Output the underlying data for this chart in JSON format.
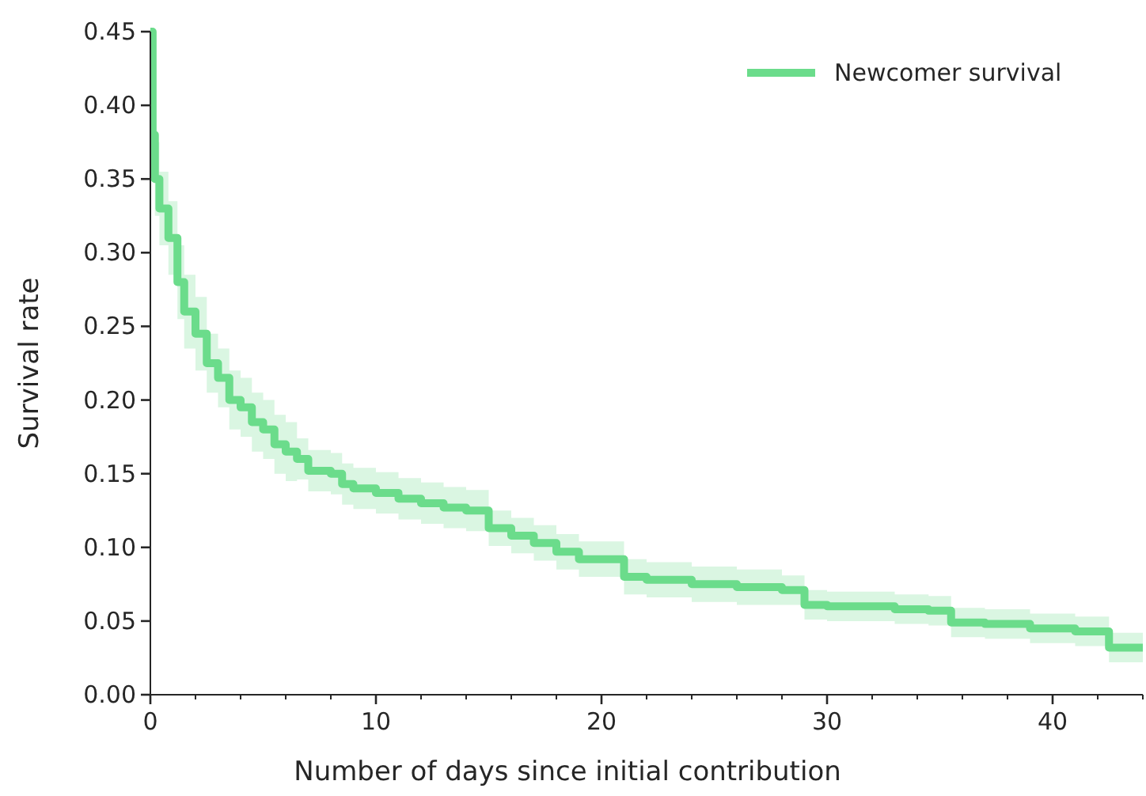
{
  "chart_data": {
    "type": "step",
    "xlabel": "Number of days since initial contribution",
    "ylabel": "Survival rate",
    "xlim": [
      0,
      44
    ],
    "ylim": [
      0,
      0.45
    ],
    "xticks": [
      0,
      {
        "value": 2,
        "label": null
      },
      {
        "value": 4,
        "label": null
      },
      {
        "value": 6,
        "label": null
      },
      {
        "value": 8,
        "label": null
      },
      10,
      {
        "value": 12,
        "label": null
      },
      {
        "value": 14,
        "label": null
      },
      {
        "value": 16,
        "label": null
      },
      {
        "value": 18,
        "label": null
      },
      20,
      {
        "value": 22,
        "label": null
      },
      {
        "value": 24,
        "label": null
      },
      {
        "value": 26,
        "label": null
      },
      {
        "value": 28,
        "label": null
      },
      30,
      {
        "value": 32,
        "label": null
      },
      {
        "value": 34,
        "label": null
      },
      {
        "value": 36,
        "label": null
      },
      {
        "value": 38,
        "label": null
      },
      40,
      {
        "value": 42,
        "label": null
      },
      {
        "value": 44,
        "label": null
      }
    ],
    "yticks": [
      {
        "value": 0,
        "label": "0.00"
      },
      {
        "value": 0.05,
        "label": "0.05"
      },
      {
        "value": 0.1,
        "label": "0.10"
      },
      {
        "value": 0.15,
        "label": "0.15"
      },
      {
        "value": 0.2,
        "label": "0.20"
      },
      {
        "value": 0.25,
        "label": "0.25"
      },
      {
        "value": 0.3,
        "label": "0.30"
      },
      {
        "value": 0.35,
        "label": "0.35"
      },
      {
        "value": 0.4,
        "label": "0.40"
      },
      {
        "value": 0.45,
        "label": "0.45"
      }
    ],
    "grid": false,
    "legend": "top right",
    "line_style": "solid",
    "marker": "none",
    "series": [
      {
        "name": "Newcomer survival",
        "color": "#6bdc8b",
        "x": [
          0,
          0.1,
          0.2,
          0.4,
          0.8,
          1.2,
          1.5,
          2,
          2.5,
          3,
          3.5,
          4,
          4.5,
          5,
          5.5,
          6,
          6.5,
          7,
          8,
          8.5,
          9,
          10,
          11,
          12,
          13,
          14,
          15,
          16,
          17,
          18,
          19,
          20,
          21,
          22,
          24,
          26,
          28,
          29,
          30,
          33,
          34.5,
          35.5,
          37,
          39,
          41,
          42.5,
          44
        ],
        "values": [
          0.45,
          0.38,
          0.35,
          0.33,
          0.31,
          0.28,
          0.26,
          0.245,
          0.225,
          0.215,
          0.2,
          0.195,
          0.185,
          0.18,
          0.17,
          0.165,
          0.16,
          0.152,
          0.15,
          0.143,
          0.14,
          0.137,
          0.133,
          0.13,
          0.127,
          0.125,
          0.113,
          0.108,
          0.103,
          0.097,
          0.092,
          0.092,
          0.08,
          0.078,
          0.075,
          0.073,
          0.071,
          0.061,
          0.06,
          0.058,
          0.057,
          0.049,
          0.048,
          0.045,
          0.043,
          0.032,
          0.032
        ],
        "lower": [
          null,
          null,
          0.325,
          0.305,
          0.285,
          0.255,
          0.235,
          0.22,
          0.205,
          0.195,
          0.18,
          0.175,
          0.165,
          0.16,
          0.15,
          0.145,
          0.146,
          0.138,
          0.136,
          0.129,
          0.126,
          0.123,
          0.119,
          0.116,
          0.113,
          0.111,
          0.101,
          0.096,
          0.091,
          0.085,
          0.08,
          0.08,
          0.068,
          0.066,
          0.063,
          0.061,
          0.061,
          0.051,
          0.05,
          0.048,
          0.047,
          0.039,
          0.038,
          0.035,
          0.033,
          0.022,
          0.022
        ],
        "upper": [
          null,
          null,
          0.375,
          0.355,
          0.335,
          0.305,
          0.285,
          0.27,
          0.245,
          0.235,
          0.22,
          0.215,
          0.205,
          0.2,
          0.19,
          0.185,
          0.174,
          0.166,
          0.164,
          0.157,
          0.154,
          0.151,
          0.147,
          0.144,
          0.141,
          0.139,
          0.125,
          0.12,
          0.115,
          0.109,
          0.104,
          0.104,
          0.092,
          0.09,
          0.087,
          0.085,
          0.081,
          0.071,
          0.07,
          0.068,
          0.067,
          0.059,
          0.058,
          0.055,
          0.053,
          0.042,
          0.042
        ]
      }
    ]
  }
}
